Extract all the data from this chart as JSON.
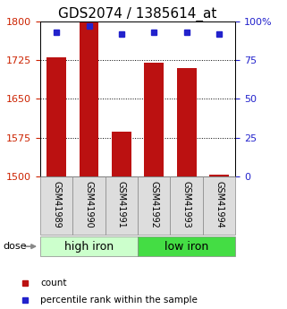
{
  "title": "GDS2074 / 1385614_at",
  "samples": [
    "GSM41989",
    "GSM41990",
    "GSM41991",
    "GSM41992",
    "GSM41993",
    "GSM41994"
  ],
  "bar_values": [
    1730,
    1800,
    1587,
    1720,
    1710,
    1503
  ],
  "percentile_values": [
    93,
    97,
    92,
    93,
    93,
    92
  ],
  "bar_color": "#bb1111",
  "percentile_color": "#2222cc",
  "ylim_left": [
    1500,
    1800
  ],
  "ylim_right": [
    0,
    100
  ],
  "yticks_left": [
    1500,
    1575,
    1650,
    1725,
    1800
  ],
  "yticks_right": [
    0,
    25,
    50,
    75,
    100
  ],
  "ytick_labels_right": [
    "0",
    "25",
    "50",
    "75",
    "100%"
  ],
  "groups": [
    {
      "label": "high iron",
      "indices": [
        0,
        1,
        2
      ],
      "color": "#ccffcc"
    },
    {
      "label": "low iron",
      "indices": [
        3,
        4,
        5
      ],
      "color": "#44dd44"
    }
  ],
  "dose_label": "dose",
  "legend_count": "count",
  "legend_percentile": "percentile rank within the sample",
  "bar_base": 1500,
  "bar_width": 0.6,
  "title_fontsize": 11,
  "tick_fontsize": 8,
  "sample_label_fontsize": 7,
  "group_label_fontsize": 9
}
